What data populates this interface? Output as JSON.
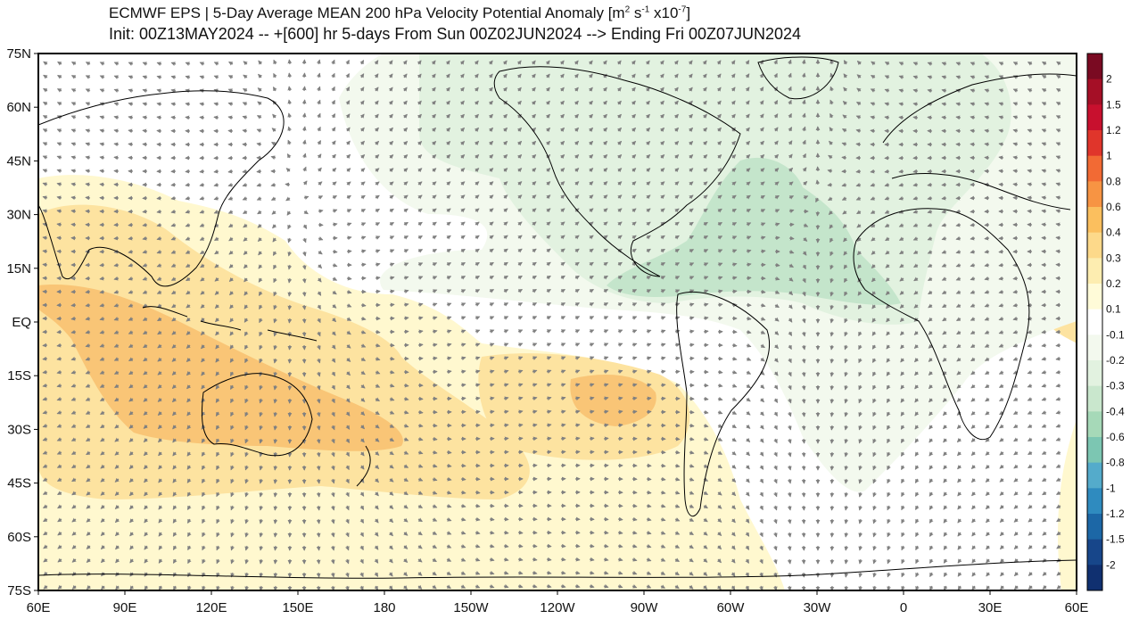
{
  "title": {
    "line1_prefix": "ECMWF EPS | 5-Day Average MEAN 200 hPa Velocity Potential Anomaly [m",
    "line1_sup1": "2",
    "line1_mid": " s",
    "line1_sup2": "-1",
    "line1_mid2": " x10",
    "line1_sup3": "-7",
    "line1_suffix": "]",
    "line2": "Init: 00Z13MAY2024 -- +[600] hr   5-days From Sun 00Z02JUN2024 --> Ending Fri 00Z07JUN2024"
  },
  "axes": {
    "lat_labels": [
      "75N",
      "60N",
      "45N",
      "30N",
      "15N",
      "EQ",
      "15S",
      "30S",
      "45S",
      "60S",
      "75S"
    ],
    "lon_labels": [
      "60E",
      "90E",
      "120E",
      "150E",
      "180",
      "150W",
      "120W",
      "90W",
      "60W",
      "30W",
      "0",
      "30E",
      "60E"
    ]
  },
  "colorbar": {
    "labels": [
      "2",
      "1.5",
      "1.2",
      "1",
      "0.8",
      "0.6",
      "0.4",
      "0.3",
      "0.2",
      "0.1",
      "-0.1",
      "-0.2",
      "-0.3",
      "-0.4",
      "-0.6",
      "-0.8",
      "-1",
      "-1.2",
      "-1.5",
      "-2"
    ],
    "colors": [
      "#7a0a22",
      "#a50f26",
      "#c8102e",
      "#e0352b",
      "#f26a34",
      "#f79443",
      "#fbbf5e",
      "#fdd98a",
      "#fdedb0",
      "#fffbd8",
      "#ffffff",
      "#f3f9ee",
      "#e2f2e0",
      "#c9e7cd",
      "#a6d9b8",
      "#7cc6b2",
      "#54abcb",
      "#2f8bbf",
      "#1c67a6",
      "#17468a",
      "#103070"
    ]
  },
  "legend_colors": {
    "neg_light": "#eef7ea",
    "neg_mid": "#dcefdc",
    "neg_strong": "#c4e5cb",
    "pos_light": "#fff8cf",
    "pos_mid": "#fde3a0",
    "pos_strong": "#f9c576",
    "pos_max": "#f5a95a"
  }
}
